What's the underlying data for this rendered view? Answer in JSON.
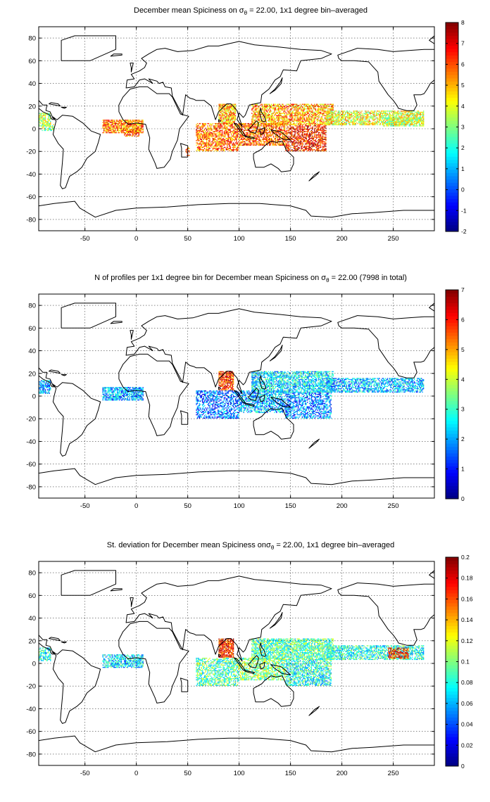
{
  "chart_data": [
    {
      "type": "heatmap",
      "title_pre": "December mean Spiciness on ",
      "title_sym": "σ",
      "title_sub": "θ",
      "title_post": " = 22.00, 1x1 degree bin–averaged",
      "xticks": [
        "-50",
        "0",
        "50",
        "100",
        "150",
        "200",
        "250"
      ],
      "yticks": [
        "80",
        "60",
        "40",
        "20",
        "0",
        "-20",
        "-40",
        "-60",
        "-80"
      ],
      "xlim": [
        -95,
        290
      ],
      "ylim": [
        -90,
        90
      ],
      "clim": [
        -2,
        8
      ],
      "cbticks": [
        "8",
        "7",
        "6",
        "5",
        "4",
        "3",
        "2",
        "1",
        "0",
        "-1",
        "-2"
      ],
      "colormap": "jet",
      "grid": true,
      "regions": [
        {
          "x": [
            -95,
            -83
          ],
          "y": [
            2,
            14
          ],
          "value": 3.5,
          "density": 0.8
        },
        {
          "x": [
            -92,
            -80
          ],
          "y": [
            -2,
            4
          ],
          "value": 3.2,
          "density": 0.5
        },
        {
          "x": [
            -33,
            7
          ],
          "y": [
            -4,
            8
          ],
          "value": 5.6,
          "density": 0.85
        },
        {
          "x": [
            -12,
            3
          ],
          "y": [
            -7,
            -1
          ],
          "value": 5.8,
          "density": 0.6
        },
        {
          "x": [
            80,
            97
          ],
          "y": [
            4,
            22
          ],
          "value": 4.9,
          "density": 0.85
        },
        {
          "x": [
            58,
            100
          ],
          "y": [
            -20,
            5
          ],
          "value": 5.6,
          "density": 0.7
        },
        {
          "x": [
            100,
            145
          ],
          "y": [
            -15,
            5
          ],
          "value": 5.9,
          "density": 0.75
        },
        {
          "x": [
            112,
            192
          ],
          "y": [
            3,
            22
          ],
          "value": 5.1,
          "density": 0.75
        },
        {
          "x": [
            145,
            185
          ],
          "y": [
            -20,
            3
          ],
          "value": 6.5,
          "density": 0.7
        },
        {
          "x": [
            185,
            280
          ],
          "y": [
            3,
            16
          ],
          "value": 4.1,
          "density": 0.75
        },
        {
          "x": [
            240,
            280
          ],
          "y": [
            2,
            10
          ],
          "value": 3.6,
          "density": 0.7
        },
        {
          "x": [
            48,
            52
          ],
          "y": [
            -24,
            -16
          ],
          "value": 6.4,
          "density": 0.5
        }
      ]
    },
    {
      "type": "heatmap",
      "title_pre": "N of profiles per 1x1 degree bin for December mean Spiciness on ",
      "title_sym": "σ",
      "title_sub": "θ",
      "title_post": " = 22.00 (7998 in total)",
      "xticks": [
        "-50",
        "0",
        "50",
        "100",
        "150",
        "200",
        "250"
      ],
      "yticks": [
        "80",
        "60",
        "40",
        "20",
        "0",
        "-20",
        "-40",
        "-60",
        "-80"
      ],
      "xlim": [
        -95,
        290
      ],
      "ylim": [
        -90,
        90
      ],
      "clim": [
        0,
        7
      ],
      "cbticks": [
        "7",
        "6",
        "5",
        "4",
        "3",
        "2",
        "1",
        "0"
      ],
      "colormap": "jet",
      "grid": true,
      "regions": [
        {
          "x": [
            -95,
            -83
          ],
          "y": [
            2,
            14
          ],
          "value": 2.0,
          "density": 0.75
        },
        {
          "x": [
            -33,
            7
          ],
          "y": [
            -4,
            8
          ],
          "value": 2.0,
          "density": 0.8
        },
        {
          "x": [
            80,
            95
          ],
          "y": [
            5,
            22
          ],
          "value": 5.8,
          "density": 0.85
        },
        {
          "x": [
            58,
            100
          ],
          "y": [
            -20,
            5
          ],
          "value": 1.6,
          "density": 0.6
        },
        {
          "x": [
            100,
            145
          ],
          "y": [
            -15,
            5
          ],
          "value": 2.1,
          "density": 0.7
        },
        {
          "x": [
            112,
            192
          ],
          "y": [
            3,
            22
          ],
          "value": 2.5,
          "density": 0.75
        },
        {
          "x": [
            145,
            190
          ],
          "y": [
            -20,
            3
          ],
          "value": 1.8,
          "density": 0.65
        },
        {
          "x": [
            185,
            280
          ],
          "y": [
            3,
            16
          ],
          "value": 2.2,
          "density": 0.7
        }
      ]
    },
    {
      "type": "heatmap",
      "title_pre": "St. deviation for December mean Spiciness on",
      "title_sym": "σ",
      "title_sub": "θ",
      "title_post": " = 22.00, 1x1 degree bin–averaged",
      "xticks": [
        "-50",
        "0",
        "50",
        "100",
        "150",
        "200",
        "250"
      ],
      "yticks": [
        "80",
        "60",
        "40",
        "20",
        "0",
        "-20",
        "-40",
        "-60",
        "-80"
      ],
      "xlim": [
        -95,
        290
      ],
      "ylim": [
        -90,
        90
      ],
      "clim": [
        0,
        0.2
      ],
      "cbticks": [
        "0.2",
        "0.18",
        "0.16",
        "0.14",
        "0.12",
        "0.1",
        "0.08",
        "0.06",
        "0.04",
        "0.02",
        "0"
      ],
      "colormap": "jet",
      "grid": true,
      "regions": [
        {
          "x": [
            -95,
            -83
          ],
          "y": [
            2,
            14
          ],
          "value": 0.08,
          "density": 0.7
        },
        {
          "x": [
            -33,
            7
          ],
          "y": [
            -4,
            8
          ],
          "value": 0.07,
          "density": 0.75
        },
        {
          "x": [
            80,
            95
          ],
          "y": [
            5,
            22
          ],
          "value": 0.17,
          "density": 0.85
        },
        {
          "x": [
            58,
            100
          ],
          "y": [
            -20,
            5
          ],
          "value": 0.09,
          "density": 0.65
        },
        {
          "x": [
            100,
            145
          ],
          "y": [
            -15,
            5
          ],
          "value": 0.1,
          "density": 0.7
        },
        {
          "x": [
            112,
            192
          ],
          "y": [
            3,
            22
          ],
          "value": 0.09,
          "density": 0.8
        },
        {
          "x": [
            145,
            190
          ],
          "y": [
            -20,
            3
          ],
          "value": 0.08,
          "density": 0.7
        },
        {
          "x": [
            185,
            280
          ],
          "y": [
            3,
            16
          ],
          "value": 0.08,
          "density": 0.7
        },
        {
          "x": [
            245,
            265
          ],
          "y": [
            4,
            14
          ],
          "value": 0.17,
          "density": 0.7
        }
      ]
    }
  ]
}
